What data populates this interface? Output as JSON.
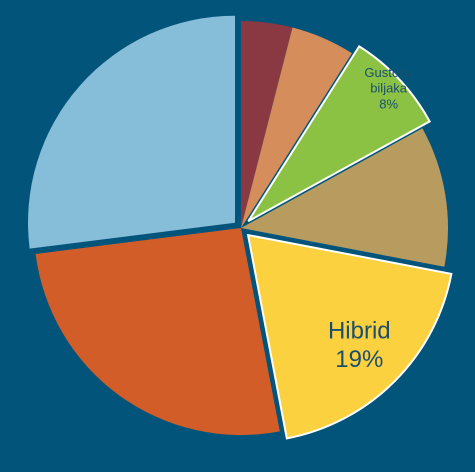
{
  "chart_data": {
    "type": "pie",
    "categories": [
      null,
      null,
      "Gustoća biljaka",
      null,
      "Hibrid",
      null,
      null
    ],
    "values": [
      4,
      5,
      8,
      11,
      19,
      26,
      27
    ],
    "value_labels": [
      null,
      null,
      "8%",
      null,
      "19%",
      null,
      null
    ],
    "colors": [
      "#8a3943",
      "#d48d5b",
      "#8cc243",
      "#b89b5e",
      "#fcd13f",
      "#d35d28",
      "#86bdd8"
    ],
    "start_angle": 0,
    "direction": "clockwise"
  }
}
